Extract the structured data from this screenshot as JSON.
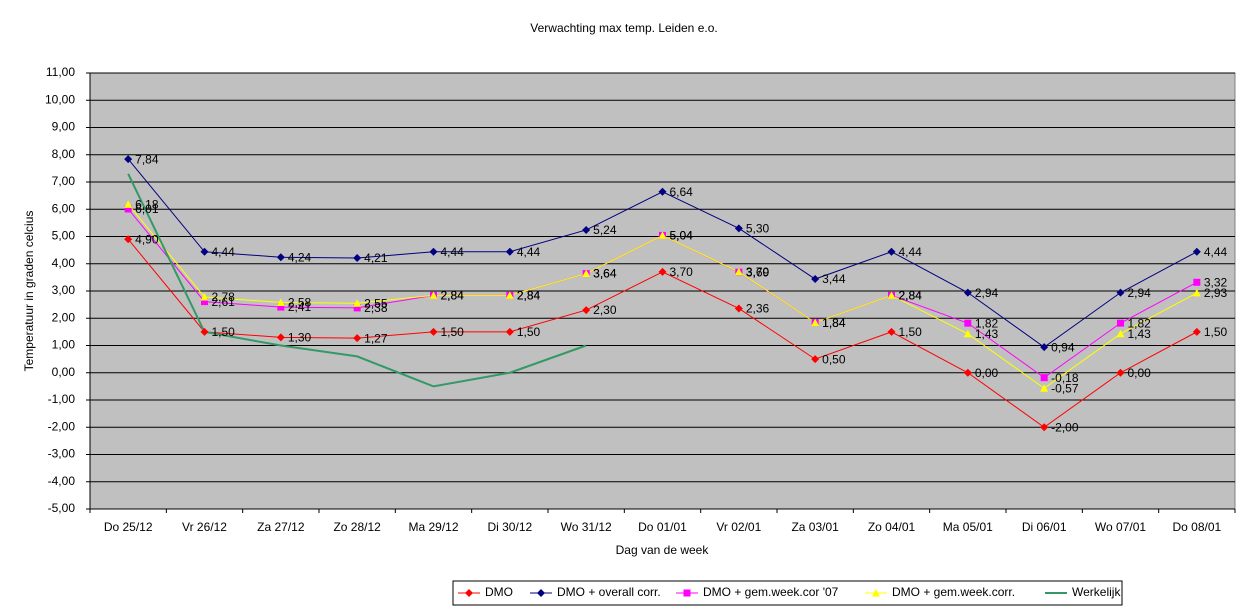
{
  "chart_data": {
    "type": "line",
    "title": "Verwachting max temp. Leiden e.o.",
    "x_label": "Dag van de week",
    "y_label": "Temperatuur in graden celcius",
    "categories": [
      "Do 25/12",
      "Vr 26/12",
      "Za 27/12",
      "Zo 28/12",
      "Ma 29/12",
      "Di 30/12",
      "Wo 31/12",
      "Do 01/01",
      "Vr 02/01",
      "Za 03/01",
      "Zo 04/01",
      "Ma 05/01",
      "Di 06/01",
      "Wo 07/01",
      "Do 08/01"
    ],
    "ylim": [
      -5,
      11
    ],
    "yticks": [
      {
        "value": -5,
        "label": "-5,00"
      },
      {
        "value": -4,
        "label": "-4,00"
      },
      {
        "value": -3,
        "label": "-3,00"
      },
      {
        "value": -2,
        "label": "-2,00"
      },
      {
        "value": -1,
        "label": "-1,00"
      },
      {
        "value": 0,
        "label": "0,00"
      },
      {
        "value": 1,
        "label": "1,00"
      },
      {
        "value": 2,
        "label": "2,00"
      },
      {
        "value": 3,
        "label": "3,00"
      },
      {
        "value": 4,
        "label": "4,00"
      },
      {
        "value": 5,
        "label": "5,00"
      },
      {
        "value": 6,
        "label": "6,00"
      },
      {
        "value": 7,
        "label": "7,00"
      },
      {
        "value": 8,
        "label": "8,00"
      },
      {
        "value": 9,
        "label": "9,00"
      },
      {
        "value": 10,
        "label": "10,00"
      },
      {
        "value": 11,
        "label": "11,00"
      }
    ],
    "grid": true,
    "legend": "bottom",
    "series": [
      {
        "name": "DMO",
        "color": "#ff0000",
        "marker": "diamond",
        "values": [
          4.9,
          1.5,
          1.3,
          1.27,
          1.5,
          1.5,
          2.3,
          3.7,
          2.36,
          0.5,
          1.5,
          0.0,
          -2.0,
          0.0,
          1.5
        ],
        "value_labels": [
          "4,90",
          "1,50",
          "1,30",
          "1,27",
          "1,50",
          "1,50",
          "2,30",
          "3,70",
          "2,36",
          "0,50",
          "1,50",
          "0,00",
          "-2,00",
          "0,00",
          "1,50"
        ]
      },
      {
        "name": "DMO + overall corr.",
        "color": "#000080",
        "marker": "diamond",
        "values": [
          7.84,
          4.44,
          4.24,
          4.21,
          4.44,
          4.44,
          5.24,
          6.64,
          5.3,
          3.44,
          4.44,
          2.94,
          0.94,
          2.94,
          4.44
        ],
        "value_labels": [
          "7,84",
          "4,44",
          "4,24",
          "4,21",
          "4,44",
          "4,44",
          "5,24",
          "6,64",
          "5,30",
          "3,44",
          "4,44",
          "2,94",
          "0,94",
          "2,94",
          "4,44"
        ]
      },
      {
        "name": "DMO + gem.week.cor '07",
        "color": "#ff00ff",
        "marker": "square",
        "values": [
          6.01,
          2.61,
          2.41,
          2.38,
          2.84,
          2.84,
          3.64,
          5.04,
          3.69,
          1.84,
          2.84,
          1.82,
          -0.18,
          1.82,
          3.32
        ],
        "value_labels": [
          "6,01",
          "2,61",
          "2,41",
          "2,38",
          "2,84",
          "2,84",
          "3,64",
          "5,04",
          "3,69",
          "1,84",
          "2,84",
          "1,82",
          "-0,18",
          "1,82",
          "3,32"
        ]
      },
      {
        "name": "DMO + gem.week.corr.",
        "color": "#ffff00",
        "marker": "triangle",
        "values": [
          6.18,
          2.78,
          2.58,
          2.55,
          2.84,
          2.84,
          3.64,
          5.04,
          3.7,
          1.84,
          2.84,
          1.43,
          -0.57,
          1.43,
          2.93
        ],
        "value_labels": [
          "6,18",
          "2,78",
          "2,58",
          "2,55",
          "2,84",
          "2,84",
          "3,64",
          "5,04",
          "3,70",
          "1,84",
          "2,84",
          "1,43",
          "-0,57",
          "1,43",
          "2,93"
        ]
      },
      {
        "name": "Werkelijk",
        "color": "#339966",
        "marker": "none",
        "values": [
          7.3,
          1.5,
          1.0,
          0.6,
          -0.5,
          0.0,
          1.0,
          null,
          null,
          null,
          null,
          null,
          null,
          null,
          null
        ]
      }
    ]
  }
}
